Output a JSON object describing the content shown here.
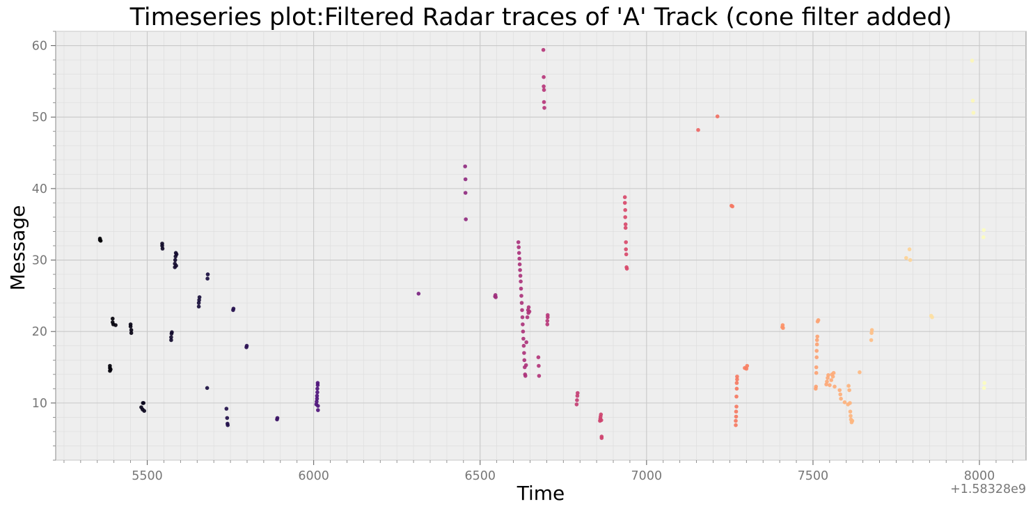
{
  "chart_data": {
    "type": "scatter",
    "title": "Timeseries plot:Filtered Radar traces of 'A' Track (cone filter added)",
    "xlabel": "Time",
    "ylabel": "Message",
    "x_offset_label": "+1.58328e9",
    "xlim": [
      5225,
      8140
    ],
    "ylim": [
      2,
      62
    ],
    "x_ticks": [
      5500,
      6000,
      6500,
      7000,
      7500,
      8000
    ],
    "y_ticks": [
      10,
      20,
      30,
      40,
      50,
      60
    ],
    "x_tick_labels": [
      "5500",
      "6000",
      "6500",
      "7000",
      "7500",
      "8000"
    ],
    "y_tick_labels": [
      "10",
      "20",
      "30",
      "40",
      "50",
      "60"
    ],
    "grid": true,
    "legend": "none",
    "colormap": "magma",
    "color_by": "time",
    "background": "#eeeeee",
    "points": [
      [
        5358,
        32.8
      ],
      [
        5358,
        33.0
      ],
      [
        5360,
        32.7
      ],
      [
        5388,
        14.5
      ],
      [
        5388,
        14.9
      ],
      [
        5388,
        15.2
      ],
      [
        5390,
        14.7
      ],
      [
        5396,
        21.8
      ],
      [
        5396,
        21.3
      ],
      [
        5398,
        21.0
      ],
      [
        5405,
        20.9
      ],
      [
        5450,
        21.0
      ],
      [
        5450,
        20.7
      ],
      [
        5452,
        20.2
      ],
      [
        5452,
        19.8
      ],
      [
        5482,
        9.4
      ],
      [
        5486,
        9.1
      ],
      [
        5487,
        10.0
      ],
      [
        5489,
        10.0
      ],
      [
        5491,
        8.9
      ],
      [
        5545,
        32.3
      ],
      [
        5545,
        32.0
      ],
      [
        5546,
        31.6
      ],
      [
        5572,
        18.8
      ],
      [
        5572,
        19.2
      ],
      [
        5573,
        19.7
      ],
      [
        5574,
        19.9
      ],
      [
        5583,
        29.0
      ],
      [
        5583,
        29.5
      ],
      [
        5584,
        30.0
      ],
      [
        5585,
        30.5
      ],
      [
        5586,
        31.0
      ],
      [
        5587,
        29.2
      ],
      [
        5588,
        30.8
      ],
      [
        5655,
        23.5
      ],
      [
        5655,
        24.0
      ],
      [
        5656,
        24.4
      ],
      [
        5657,
        24.8
      ],
      [
        5680,
        12.1
      ],
      [
        5681,
        27.4
      ],
      [
        5682,
        28.0
      ],
      [
        5738,
        9.2
      ],
      [
        5740,
        7.9
      ],
      [
        5741,
        7.1
      ],
      [
        5742,
        6.9
      ],
      [
        5758,
        23.0
      ],
      [
        5759,
        23.2
      ],
      [
        5798,
        17.8
      ],
      [
        5799,
        18.0
      ],
      [
        5890,
        7.7
      ],
      [
        5891,
        7.9
      ],
      [
        6008,
        9.8
      ],
      [
        6009,
        10.2
      ],
      [
        6010,
        10.6
      ],
      [
        6010,
        11.0
      ],
      [
        6011,
        11.5
      ],
      [
        6011,
        12.0
      ],
      [
        6012,
        12.5
      ],
      [
        6012,
        12.8
      ],
      [
        6013,
        9.0
      ],
      [
        6013,
        9.6
      ],
      [
        6315,
        25.3
      ],
      [
        6455,
        43.1
      ],
      [
        6456,
        41.3
      ],
      [
        6456,
        39.4
      ],
      [
        6457,
        35.7
      ],
      [
        6545,
        24.9
      ],
      [
        6546,
        25.1
      ],
      [
        6547,
        24.8
      ],
      [
        6615,
        32.5
      ],
      [
        6616,
        31.8
      ],
      [
        6617,
        31.0
      ],
      [
        6618,
        30.2
      ],
      [
        6619,
        29.4
      ],
      [
        6620,
        28.6
      ],
      [
        6621,
        27.8
      ],
      [
        6622,
        27.0
      ],
      [
        6623,
        26.0
      ],
      [
        6624,
        25.0
      ],
      [
        6625,
        24.0
      ],
      [
        6626,
        23.0
      ],
      [
        6627,
        22.0
      ],
      [
        6628,
        21.0
      ],
      [
        6629,
        20.0
      ],
      [
        6630,
        19.0
      ],
      [
        6631,
        18.0
      ],
      [
        6632,
        17.0
      ],
      [
        6633,
        16.0
      ],
      [
        6634,
        15.0
      ],
      [
        6635,
        14.0
      ],
      [
        6636,
        13.8
      ],
      [
        6638,
        15.3
      ],
      [
        6639,
        18.5
      ],
      [
        6642,
        22.0
      ],
      [
        6644,
        23.0
      ],
      [
        6645,
        22.6
      ],
      [
        6646,
        23.4
      ],
      [
        6648,
        22.8
      ],
      [
        6675,
        16.4
      ],
      [
        6676,
        15.2
      ],
      [
        6677,
        13.8
      ],
      [
        6690,
        59.4
      ],
      [
        6691,
        55.6
      ],
      [
        6691,
        54.3
      ],
      [
        6692,
        53.8
      ],
      [
        6692,
        52.1
      ],
      [
        6693,
        51.3
      ],
      [
        6702,
        21.0
      ],
      [
        6702,
        21.5
      ],
      [
        6703,
        22.0
      ],
      [
        6703,
        22.3
      ],
      [
        6790,
        9.8
      ],
      [
        6791,
        10.4
      ],
      [
        6792,
        11.0
      ],
      [
        6793,
        11.4
      ],
      [
        6860,
        7.5
      ],
      [
        6861,
        7.8
      ],
      [
        6862,
        8.1
      ],
      [
        6863,
        8.4
      ],
      [
        6864,
        7.6
      ],
      [
        6865,
        5.1
      ],
      [
        6865,
        5.3
      ],
      [
        6935,
        38.8
      ],
      [
        6935,
        38.0
      ],
      [
        6936,
        37.0
      ],
      [
        6936,
        36.0
      ],
      [
        6937,
        35.0
      ],
      [
        6937,
        34.5
      ],
      [
        6938,
        32.5
      ],
      [
        6938,
        31.5
      ],
      [
        6939,
        30.8
      ],
      [
        6940,
        29.0
      ],
      [
        6941,
        28.8
      ],
      [
        7155,
        48.2
      ],
      [
        7213,
        50.1
      ],
      [
        7255,
        37.6
      ],
      [
        7258,
        37.5
      ],
      [
        7268,
        6.9
      ],
      [
        7268,
        7.5
      ],
      [
        7269,
        8.1
      ],
      [
        7269,
        8.8
      ],
      [
        7270,
        9.5
      ],
      [
        7270,
        10.9
      ],
      [
        7271,
        12.0
      ],
      [
        7271,
        12.8
      ],
      [
        7272,
        13.3
      ],
      [
        7272,
        13.7
      ],
      [
        7295,
        14.9
      ],
      [
        7300,
        14.8
      ],
      [
        7302,
        15.2
      ],
      [
        7408,
        20.6
      ],
      [
        7409,
        20.9
      ],
      [
        7410,
        20.5
      ],
      [
        7508,
        12.0
      ],
      [
        7509,
        12.3
      ],
      [
        7510,
        14.2
      ],
      [
        7510,
        15.0
      ],
      [
        7511,
        16.4
      ],
      [
        7511,
        17.3
      ],
      [
        7512,
        18.2
      ],
      [
        7512,
        18.8
      ],
      [
        7513,
        19.3
      ],
      [
        7514,
        21.4
      ],
      [
        7516,
        21.6
      ],
      [
        7540,
        12.6
      ],
      [
        7542,
        13.0
      ],
      [
        7544,
        13.5
      ],
      [
        7546,
        13.9
      ],
      [
        7550,
        12.5
      ],
      [
        7555,
        13.2
      ],
      [
        7557,
        14.0
      ],
      [
        7560,
        13.7
      ],
      [
        7562,
        14.2
      ],
      [
        7565,
        12.3
      ],
      [
        7580,
        11.8
      ],
      [
        7582,
        11.2
      ],
      [
        7584,
        10.6
      ],
      [
        7595,
        10.1
      ],
      [
        7605,
        9.8
      ],
      [
        7607,
        12.4
      ],
      [
        7609,
        11.8
      ],
      [
        7611,
        10.0
      ],
      [
        7612,
        8.8
      ],
      [
        7613,
        8.2
      ],
      [
        7614,
        7.7
      ],
      [
        7616,
        7.3
      ],
      [
        7618,
        7.5
      ],
      [
        7640,
        14.3
      ],
      [
        7675,
        18.8
      ],
      [
        7676,
        19.8
      ],
      [
        7677,
        20.2
      ],
      [
        7780,
        30.3
      ],
      [
        7790,
        31.5
      ],
      [
        7792,
        30.0
      ],
      [
        7855,
        22.2
      ],
      [
        7858,
        22.0
      ],
      [
        7978,
        57.9
      ],
      [
        7980,
        52.3
      ],
      [
        7982,
        50.6
      ],
      [
        8012,
        33.2
      ],
      [
        8013,
        34.2
      ],
      [
        8014,
        12.1
      ],
      [
        8015,
        12.8
      ]
    ]
  }
}
